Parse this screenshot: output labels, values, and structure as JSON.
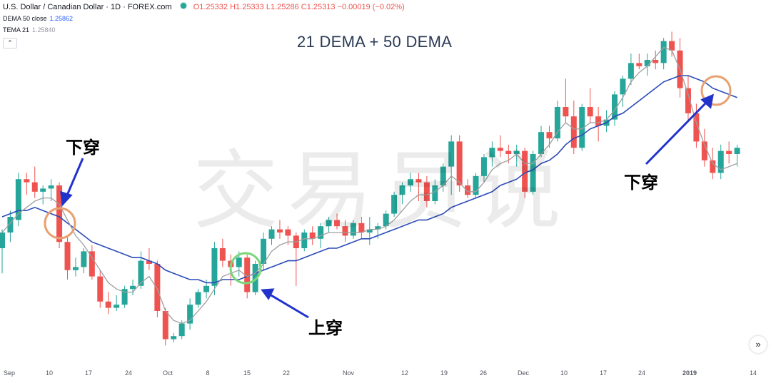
{
  "header": {
    "symbol_title": "U.S. Dollar / Canadian Dollar · 1D · FOREX.com",
    "ohlc": "O1.25332 H1.25333 L1.25286 C1.25313 −0.00019 (−0.02%)",
    "indicators": [
      {
        "label": "DEMA 50 close",
        "value": "1.25862"
      },
      {
        "label": "TEMA 21",
        "value": "1.25840"
      }
    ],
    "collapse_icon": "chevron-up-icon"
  },
  "title": "21 DEMA + 50 DEMA",
  "watermark": "交易员说",
  "annotations": {
    "cross_down_left": "下穿",
    "cross_up": "上穿",
    "cross_down_right": "下穿"
  },
  "scroll_button": "»",
  "colors": {
    "up": "#26a69a",
    "down": "#ef5350",
    "dema50": "#2b4ab8",
    "tema21": "#9e9e9e",
    "arrow": "#2233cc",
    "circle_down": "#e8a070",
    "circle_up": "#7cd67c"
  },
  "chart_data": {
    "type": "candlestick",
    "xlabel": "",
    "ylabel": "",
    "grid": false,
    "x_ticks": [
      "Sep",
      "10",
      "17",
      "24",
      "Oct",
      "8",
      "15",
      "22",
      "Nov",
      "12",
      "19",
      "26",
      "Dec",
      "10",
      "17",
      "24",
      "2019",
      "14"
    ],
    "ylim": [
      1.27,
      1.37
    ],
    "series_colors": {
      "DEMA 50 close": "#2b4ab8",
      "TEMA 21": "#9e9e9e"
    },
    "candles": [
      [
        1.3,
        1.306,
        1.292,
        1.305
      ],
      [
        1.305,
        1.312,
        1.302,
        1.31
      ],
      [
        1.309,
        1.324,
        1.307,
        1.322
      ],
      [
        1.322,
        1.324,
        1.317,
        1.321
      ],
      [
        1.321,
        1.326,
        1.316,
        1.318
      ],
      [
        1.318,
        1.32,
        1.314,
        1.319
      ],
      [
        1.319,
        1.322,
        1.315,
        1.32
      ],
      [
        1.32,
        1.321,
        1.3,
        1.302
      ],
      [
        1.302,
        1.304,
        1.29,
        1.293
      ],
      [
        1.293,
        1.297,
        1.291,
        1.294
      ],
      [
        1.294,
        1.3,
        1.292,
        1.299
      ],
      [
        1.299,
        1.301,
        1.29,
        1.291
      ],
      [
        1.291,
        1.293,
        1.281,
        1.283
      ],
      [
        1.283,
        1.286,
        1.279,
        1.281
      ],
      [
        1.281,
        1.285,
        1.28,
        1.282
      ],
      [
        1.282,
        1.288,
        1.281,
        1.287
      ],
      [
        1.287,
        1.29,
        1.285,
        1.288
      ],
      [
        1.288,
        1.299,
        1.287,
        1.296
      ],
      [
        1.296,
        1.3,
        1.293,
        1.295
      ],
      [
        1.295,
        1.296,
        1.278,
        1.28
      ],
      [
        1.28,
        1.281,
        1.269,
        1.271
      ],
      [
        1.271,
        1.273,
        1.27,
        1.272
      ],
      [
        1.272,
        1.277,
        1.271,
        1.276
      ],
      [
        1.276,
        1.284,
        1.274,
        1.282
      ],
      [
        1.282,
        1.287,
        1.281,
        1.286
      ],
      [
        1.286,
        1.29,
        1.284,
        1.288
      ],
      [
        1.288,
        1.302,
        1.285,
        1.3
      ],
      [
        1.3,
        1.303,
        1.294,
        1.296
      ],
      [
        1.296,
        1.298,
        1.288,
        1.294
      ],
      [
        1.294,
        1.299,
        1.291,
        1.297
      ],
      [
        1.297,
        1.298,
        1.284,
        1.286
      ],
      [
        1.286,
        1.296,
        1.285,
        1.295
      ],
      [
        1.295,
        1.305,
        1.293,
        1.303
      ],
      [
        1.303,
        1.307,
        1.301,
        1.306
      ],
      [
        1.306,
        1.309,
        1.303,
        1.305
      ],
      [
        1.306,
        1.307,
        1.301,
        1.304
      ],
      [
        1.304,
        1.305,
        1.288,
        1.3
      ],
      [
        1.3,
        1.306,
        1.299,
        1.305
      ],
      [
        1.305,
        1.307,
        1.301,
        1.303
      ],
      [
        1.303,
        1.308,
        1.3,
        1.307
      ],
      [
        1.307,
        1.31,
        1.305,
        1.309
      ],
      [
        1.309,
        1.311,
        1.306,
        1.307
      ],
      [
        1.307,
        1.309,
        1.302,
        1.304
      ],
      [
        1.304,
        1.309,
        1.303,
        1.308
      ],
      [
        1.308,
        1.31,
        1.303,
        1.305
      ],
      [
        1.305,
        1.31,
        1.301,
        1.306
      ],
      [
        1.306,
        1.308,
        1.303,
        1.307
      ],
      [
        1.307,
        1.312,
        1.306,
        1.311
      ],
      [
        1.311,
        1.318,
        1.31,
        1.317
      ],
      [
        1.317,
        1.321,
        1.314,
        1.32
      ],
      [
        1.32,
        1.324,
        1.318,
        1.322
      ],
      [
        1.322,
        1.324,
        1.315,
        1.321
      ],
      [
        1.321,
        1.323,
        1.313,
        1.315
      ],
      [
        1.315,
        1.322,
        1.314,
        1.32
      ],
      [
        1.32,
        1.327,
        1.318,
        1.326
      ],
      [
        1.326,
        1.336,
        1.317,
        1.334
      ],
      [
        1.334,
        1.336,
        1.318,
        1.32
      ],
      [
        1.32,
        1.322,
        1.316,
        1.317
      ],
      [
        1.317,
        1.324,
        1.316,
        1.323
      ],
      [
        1.323,
        1.33,
        1.321,
        1.329
      ],
      [
        1.329,
        1.334,
        1.326,
        1.332
      ],
      [
        1.332,
        1.336,
        1.329,
        1.331
      ],
      [
        1.331,
        1.333,
        1.327,
        1.33
      ],
      [
        1.33,
        1.333,
        1.326,
        1.331
      ],
      [
        1.331,
        1.332,
        1.316,
        1.318
      ],
      [
        1.318,
        1.331,
        1.317,
        1.33
      ],
      [
        1.33,
        1.339,
        1.329,
        1.337
      ],
      [
        1.337,
        1.339,
        1.332,
        1.335
      ],
      [
        1.335,
        1.347,
        1.334,
        1.345
      ],
      [
        1.345,
        1.354,
        1.34,
        1.342
      ],
      [
        1.342,
        1.347,
        1.33,
        1.332
      ],
      [
        1.332,
        1.346,
        1.331,
        1.345
      ],
      [
        1.345,
        1.351,
        1.34,
        1.342
      ],
      [
        1.342,
        1.345,
        1.334,
        1.339
      ],
      [
        1.339,
        1.344,
        1.337,
        1.341
      ],
      [
        1.341,
        1.35,
        1.339,
        1.349
      ],
      [
        1.349,
        1.355,
        1.345,
        1.354
      ],
      [
        1.354,
        1.362,
        1.352,
        1.359
      ],
      [
        1.359,
        1.362,
        1.357,
        1.358
      ],
      [
        1.358,
        1.362,
        1.355,
        1.36
      ],
      [
        1.36,
        1.363,
        1.357,
        1.359
      ],
      [
        1.359,
        1.367,
        1.357,
        1.366
      ],
      [
        1.366,
        1.369,
        1.361,
        1.363
      ],
      [
        1.363,
        1.367,
        1.348,
        1.351
      ],
      [
        1.351,
        1.355,
        1.341,
        1.343
      ],
      [
        1.343,
        1.346,
        1.332,
        1.334
      ],
      [
        1.334,
        1.338,
        1.326,
        1.328
      ],
      [
        1.328,
        1.332,
        1.322,
        1.324
      ],
      [
        1.324,
        1.333,
        1.322,
        1.331
      ],
      [
        1.331,
        1.334,
        1.327,
        1.33
      ],
      [
        1.33,
        1.333,
        1.326,
        1.332
      ]
    ],
    "series": [
      {
        "name": "DEMA 50 close",
        "values": [
          1.31,
          1.311,
          1.312,
          1.312,
          1.313,
          1.312,
          1.311,
          1.31,
          1.308,
          1.306,
          1.304,
          1.302,
          1.301,
          1.3,
          1.299,
          1.298,
          1.297,
          1.297,
          1.296,
          1.295,
          1.293,
          1.292,
          1.291,
          1.29,
          1.29,
          1.289,
          1.289,
          1.29,
          1.29,
          1.29,
          1.291,
          1.292,
          1.293,
          1.294,
          1.295,
          1.296,
          1.296,
          1.297,
          1.298,
          1.299,
          1.3,
          1.3,
          1.301,
          1.302,
          1.303,
          1.303,
          1.304,
          1.305,
          1.306,
          1.307,
          1.308,
          1.309,
          1.309,
          1.31,
          1.311,
          1.313,
          1.314,
          1.315,
          1.316,
          1.317,
          1.318,
          1.32,
          1.321,
          1.322,
          1.324,
          1.325,
          1.327,
          1.328,
          1.33,
          1.333,
          1.335,
          1.336,
          1.338,
          1.339,
          1.34,
          1.342,
          1.343,
          1.345,
          1.347,
          1.349,
          1.351,
          1.353,
          1.354,
          1.355,
          1.355,
          1.354,
          1.353,
          1.351,
          1.35,
          1.349,
          1.348
        ]
      },
      {
        "name": "TEMA 21",
        "values": [
          1.305,
          1.308,
          1.311,
          1.313,
          1.315,
          1.316,
          1.316,
          1.314,
          1.309,
          1.304,
          1.301,
          1.297,
          1.293,
          1.289,
          1.287,
          1.286,
          1.286,
          1.289,
          1.291,
          1.287,
          1.28,
          1.277,
          1.276,
          1.277,
          1.28,
          1.283,
          1.287,
          1.291,
          1.292,
          1.293,
          1.291,
          1.292,
          1.295,
          1.299,
          1.301,
          1.302,
          1.302,
          1.303,
          1.303,
          1.304,
          1.305,
          1.305,
          1.305,
          1.305,
          1.305,
          1.306,
          1.306,
          1.307,
          1.309,
          1.312,
          1.315,
          1.317,
          1.317,
          1.318,
          1.32,
          1.323,
          1.321,
          1.318,
          1.318,
          1.321,
          1.325,
          1.327,
          1.328,
          1.33,
          1.327,
          1.327,
          1.33,
          1.333,
          1.337,
          1.34,
          1.338,
          1.338,
          1.34,
          1.34,
          1.341,
          1.344,
          1.348,
          1.353,
          1.356,
          1.358,
          1.361,
          1.364,
          1.363,
          1.357,
          1.349,
          1.34,
          1.333,
          1.327,
          1.325,
          1.326,
          1.327
        ]
      }
    ]
  }
}
